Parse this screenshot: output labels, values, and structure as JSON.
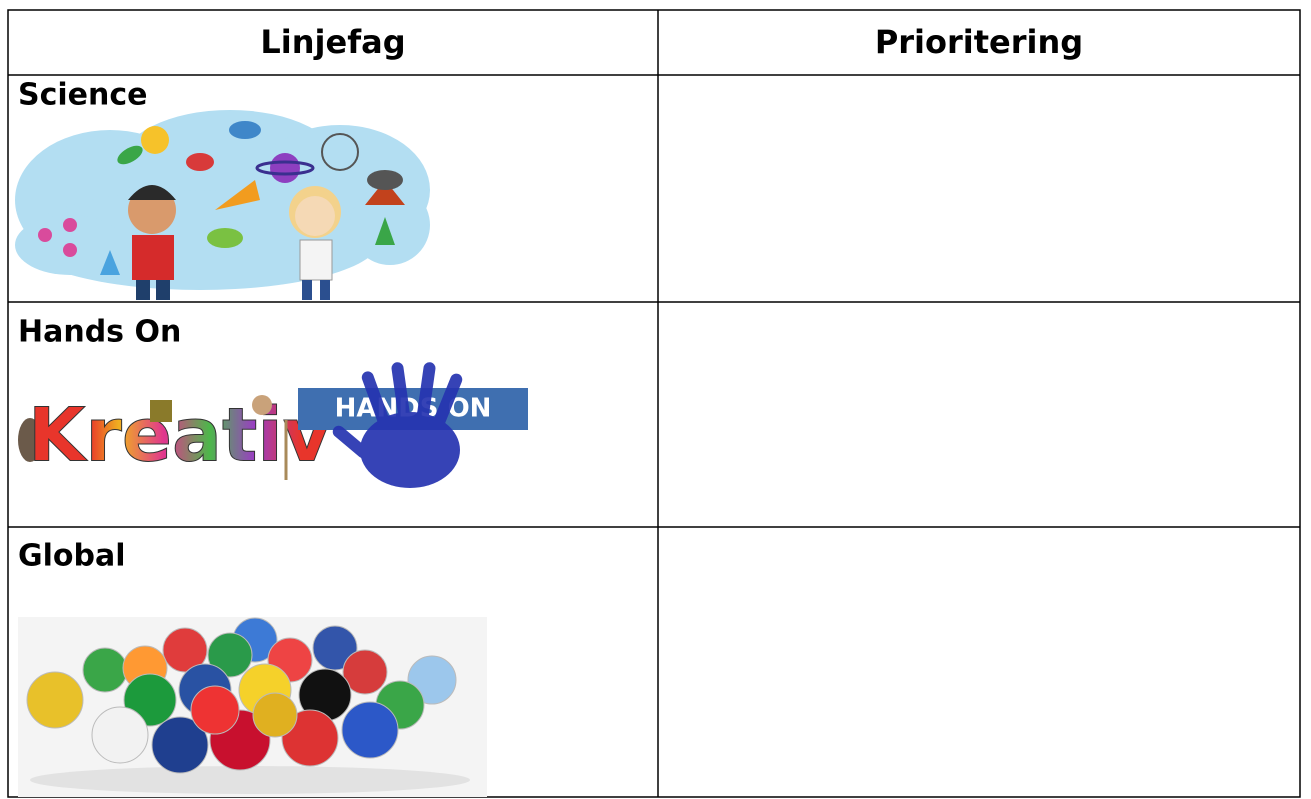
{
  "table": {
    "header": [
      "Linjefag",
      "Prioritering"
    ],
    "rows": [
      {
        "label": "Science"
      },
      {
        "label": "Hands On",
        "image_texts": [
          "Kreativ",
          "HANDS ON"
        ]
      },
      {
        "label": "Global"
      }
    ]
  }
}
